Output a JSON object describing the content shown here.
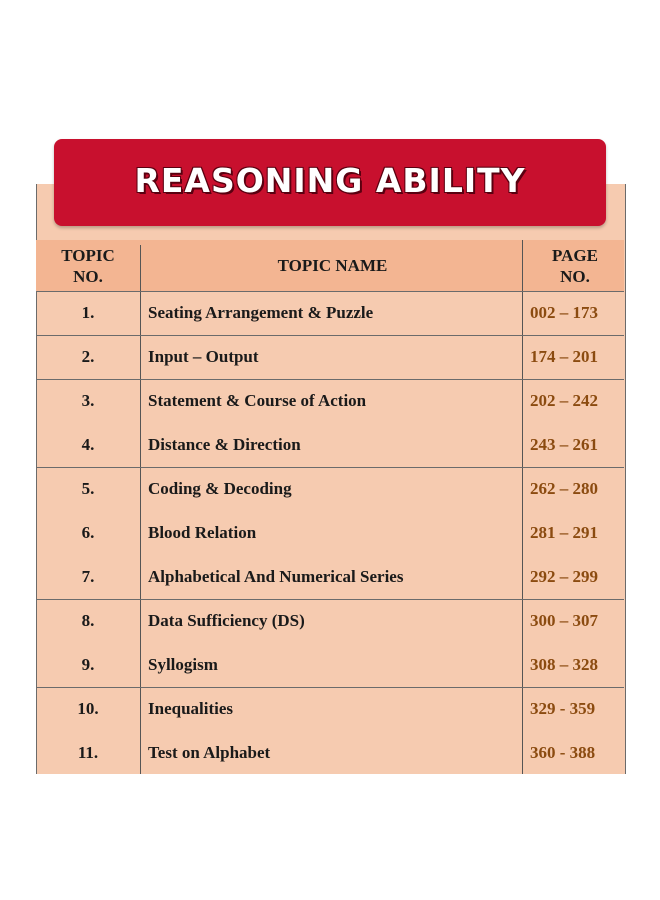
{
  "title": "REASONING ABILITY",
  "header": {
    "topic_no": "TOPIC NO.",
    "topic_no_l1": "TOPIC",
    "topic_no_l2": "NO.",
    "topic_name": "TOPIC NAME",
    "page_no_l1": "PAGE",
    "page_no_l2": "NO."
  },
  "rows": [
    {
      "no": "1.",
      "name": "Seating Arrangement & Puzzle",
      "pages": "002 – 173"
    },
    {
      "no": "2.",
      "name": "Input – Output",
      "pages": "174 – 201"
    },
    {
      "no": "3.",
      "name": "Statement & Course of Action",
      "pages": "202 – 242"
    },
    {
      "no": "4.",
      "name": "Distance & Direction",
      "pages": "243 – 261"
    },
    {
      "no": "5.",
      "name": "Coding & Decoding",
      "pages": "262 – 280"
    },
    {
      "no": "6.",
      "name": "Blood Relation",
      "pages": "281 – 291"
    },
    {
      "no": "7.",
      "name": "Alphabetical And Numerical Series",
      "pages": "292 – 299"
    },
    {
      "no": "8.",
      "name": "Data Sufficiency (DS)",
      "pages": "300 – 307"
    },
    {
      "no": "9.",
      "name": "Syllogism",
      "pages": "308 – 328"
    },
    {
      "no": "10.",
      "name": "Inequalities",
      "pages": "329 - 359"
    },
    {
      "no": "11.",
      "name": "Test on Alphabet",
      "pages": "360 - 388"
    }
  ],
  "colors": {
    "banner": "#c8102e",
    "panel": "#f6cbb0",
    "header": "#f3b592",
    "page_text": "#8b4b10"
  }
}
